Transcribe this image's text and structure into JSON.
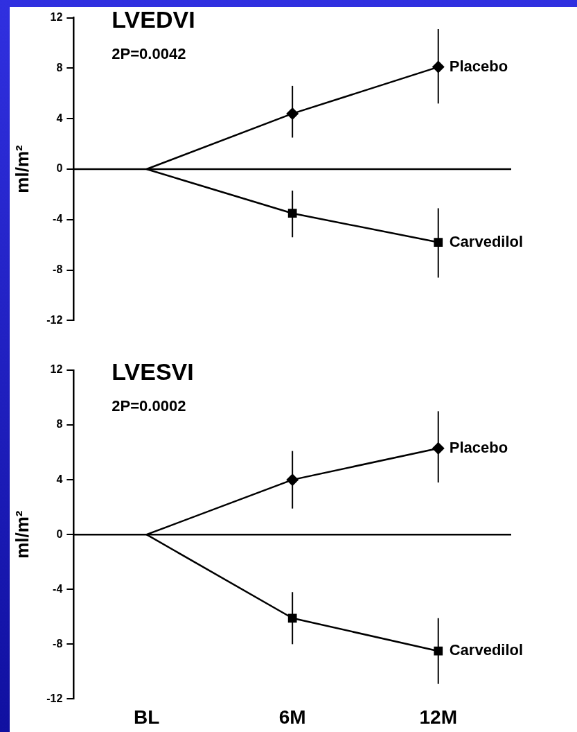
{
  "chart_data": [
    {
      "type": "line",
      "title": "LVEDVI",
      "annotations": [
        "2P=0.0042"
      ],
      "ylabel": "ml/m²",
      "categories": [
        null,
        null,
        null
      ],
      "ylim": [
        -12,
        12
      ],
      "yticks": [
        -12,
        -8,
        -4,
        0,
        4,
        8,
        12
      ],
      "legend": false,
      "ref_lines": [
        {
          "axis": "y",
          "value": 0,
          "color": "#000000"
        }
      ],
      "series": [
        {
          "name": "Placebo",
          "color": "#000000",
          "marker": "diamond",
          "values": [
            0,
            4.4,
            8.1
          ],
          "errors": [
            null,
            [
              2.5,
              6.6
            ],
            [
              5.2,
              11.1
            ]
          ]
        },
        {
          "name": "Carvedilol",
          "color": "#000000",
          "marker": "square",
          "values": [
            0,
            -3.5,
            -5.8
          ],
          "errors": [
            null,
            [
              -5.4,
              -1.7
            ],
            [
              -8.6,
              -3.1
            ]
          ]
        }
      ]
    },
    {
      "type": "line",
      "title": "LVESVI",
      "annotations": [
        "2P=0.0002"
      ],
      "ylabel": "ml/m²",
      "categories": [
        "BL",
        "6M",
        "12M"
      ],
      "ylim": [
        -12,
        12
      ],
      "yticks": [
        -12,
        -8,
        -4,
        0,
        4,
        8,
        12
      ],
      "legend": false,
      "ref_lines": [
        {
          "axis": "y",
          "value": 0,
          "color": "#000000"
        }
      ],
      "series": [
        {
          "name": "Placebo",
          "color": "#000000",
          "marker": "diamond",
          "values": [
            0,
            4.0,
            6.3
          ],
          "errors": [
            null,
            [
              1.9,
              6.1
            ],
            [
              3.8,
              9.0
            ]
          ]
        },
        {
          "name": "Carvedilol",
          "color": "#000000",
          "marker": "square",
          "values": [
            0,
            -6.1,
            -8.5
          ],
          "errors": [
            null,
            [
              -8.0,
              -4.2
            ],
            [
              -10.9,
              -6.1
            ]
          ]
        }
      ]
    }
  ]
}
